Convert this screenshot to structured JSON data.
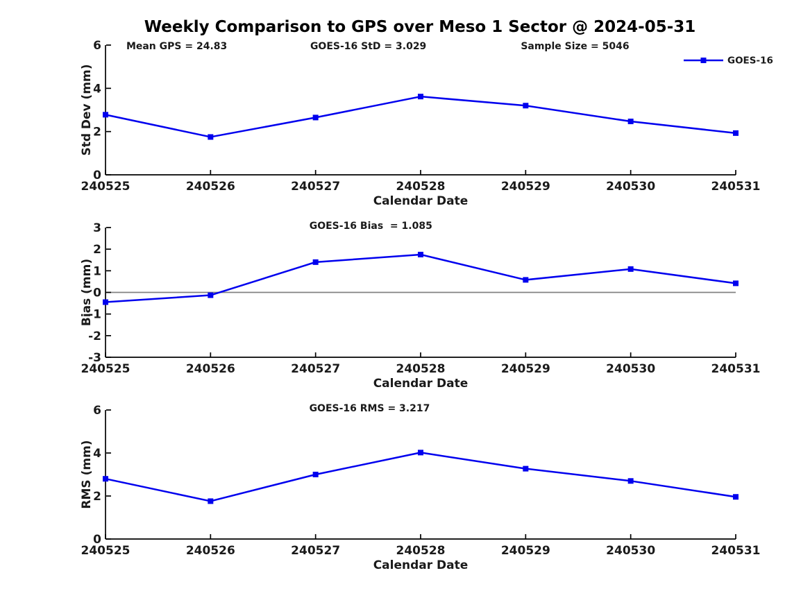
{
  "title": "Weekly Comparison to GPS over Meso 1 Sector @ 2024-05-31",
  "colors": {
    "line": "#0000EE",
    "zero_line": "#808080",
    "axis": "#000000",
    "text": "#1a1a1a",
    "background": "#ffffff"
  },
  "chart_data": [
    {
      "type": "line",
      "title": "",
      "ylabel": "Std Dev (mm)",
      "xlabel": "Calendar Date",
      "categories": [
        "240525",
        "240526",
        "240527",
        "240528",
        "240529",
        "240530",
        "240531"
      ],
      "series": [
        {
          "name": "GOES-16",
          "values": [
            2.78,
            1.75,
            2.65,
            3.62,
            3.2,
            2.47,
            1.93
          ]
        }
      ],
      "ylim": [
        0,
        6
      ],
      "yticks": [
        0,
        2,
        4,
        6
      ],
      "grid": false,
      "annotations": [
        {
          "text": "Mean GPS = 24.83"
        },
        {
          "text": "GOES-16 StD = 3.029"
        },
        {
          "text": "Sample Size = 5046"
        }
      ],
      "legend": {
        "visible": true,
        "position": "top-right",
        "entries": [
          "GOES-16"
        ]
      }
    },
    {
      "type": "line",
      "title": "",
      "ylabel": "Bias (mm)",
      "xlabel": "Calendar Date",
      "categories": [
        "240525",
        "240526",
        "240527",
        "240528",
        "240529",
        "240530",
        "240531"
      ],
      "series": [
        {
          "name": "GOES-16",
          "values": [
            -0.45,
            -0.13,
            1.4,
            1.75,
            0.58,
            1.08,
            0.42
          ]
        }
      ],
      "ylim": [
        -3,
        3
      ],
      "yticks": [
        -3,
        -2,
        -1,
        0,
        1,
        2,
        3
      ],
      "grid": false,
      "zero_line": true,
      "annotations": [
        {
          "text": "GOES-16 Bias  = 1.085"
        }
      ],
      "legend": {
        "visible": false
      }
    },
    {
      "type": "line",
      "title": "",
      "ylabel": "RMS (mm)",
      "xlabel": "Calendar Date",
      "categories": [
        "240525",
        "240526",
        "240527",
        "240528",
        "240529",
        "240530",
        "240531"
      ],
      "series": [
        {
          "name": "GOES-16",
          "values": [
            2.8,
            1.76,
            3.0,
            4.02,
            3.27,
            2.7,
            1.96
          ]
        }
      ],
      "ylim": [
        0,
        6
      ],
      "yticks": [
        0,
        2,
        4,
        6
      ],
      "grid": false,
      "annotations": [
        {
          "text": "GOES-16 RMS = 3.217"
        }
      ],
      "legend": {
        "visible": false
      }
    }
  ]
}
